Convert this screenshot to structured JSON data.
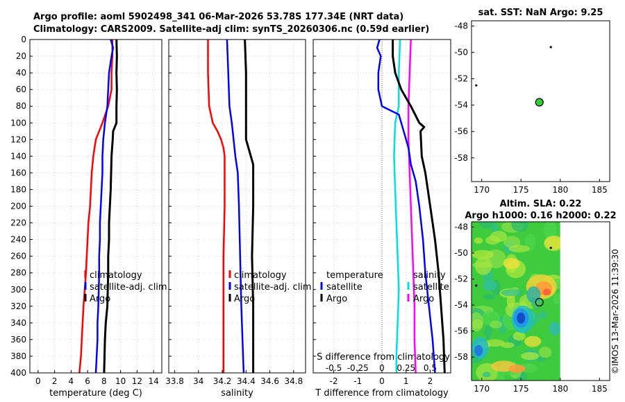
{
  "header": {
    "line1": "Argo profile: aoml 5902498_341 06-Mar-2026 53.78S 177.34E (NRT data)",
    "line2": "Climatology: CARS2009. Satellite-adj clim: synTS_20260306.nc (0.59d earlier)"
  },
  "credit": "©IMOS 13-Mar-2026 11:39:30",
  "chart_data": [
    {
      "id": "temperature",
      "type": "line",
      "xlabel": "temperature (deg C)",
      "ylabel": "",
      "xlim": [
        -1,
        15
      ],
      "ylim": [
        400,
        0
      ],
      "xticks": [
        0,
        2,
        4,
        6,
        8,
        10,
        12,
        14
      ],
      "xtick_labels": [
        "0",
        "2",
        "4",
        "6",
        "8",
        "10",
        "12",
        "14"
      ],
      "yticks": [
        0,
        20,
        40,
        60,
        80,
        100,
        120,
        140,
        160,
        180,
        200,
        220,
        240,
        260,
        280,
        300,
        320,
        340,
        360,
        380,
        400
      ],
      "ytick_labels": [
        "0",
        "20",
        "40",
        "60",
        "80",
        "100",
        "120",
        "140",
        "160",
        "180",
        "200",
        "220",
        "240",
        "260",
        "280",
        "300",
        "320",
        "340",
        "360",
        "380",
        "400"
      ],
      "legend": [
        "climatology",
        "satellite-adj. clim",
        "Argo"
      ],
      "series": [
        {
          "name": "climatology",
          "color": "#ff0000",
          "width": 2.5,
          "points": [
            [
              9.0,
              0
            ],
            [
              9.0,
              20
            ],
            [
              8.9,
              40
            ],
            [
              8.9,
              60
            ],
            [
              8.5,
              80
            ],
            [
              7.8,
              100
            ],
            [
              7.0,
              120
            ],
            [
              6.7,
              140
            ],
            [
              6.5,
              160
            ],
            [
              6.4,
              180
            ],
            [
              6.3,
              200
            ],
            [
              6.1,
              220
            ],
            [
              6.0,
              240
            ],
            [
              5.9,
              260
            ],
            [
              5.8,
              280
            ],
            [
              5.65,
              300
            ],
            [
              5.5,
              320
            ],
            [
              5.4,
              340
            ],
            [
              5.3,
              360
            ],
            [
              5.2,
              380
            ],
            [
              5.0,
              400
            ]
          ]
        },
        {
          "name": "satellite-adj. clim",
          "color": "#0000ff",
          "width": 2.5,
          "points": [
            [
              8.8,
              0
            ],
            [
              9.1,
              10
            ],
            [
              8.9,
              20
            ],
            [
              8.6,
              40
            ],
            [
              8.5,
              60
            ],
            [
              8.4,
              80
            ],
            [
              8.1,
              100
            ],
            [
              7.9,
              120
            ],
            [
              7.8,
              140
            ],
            [
              7.8,
              160
            ],
            [
              7.7,
              180
            ],
            [
              7.6,
              200
            ],
            [
              7.5,
              220
            ],
            [
              7.5,
              240
            ],
            [
              7.4,
              260
            ],
            [
              7.4,
              280
            ],
            [
              7.35,
              300
            ],
            [
              7.3,
              320
            ],
            [
              7.2,
              340
            ],
            [
              7.2,
              360
            ],
            [
              7.1,
              380
            ],
            [
              7.0,
              400
            ]
          ]
        },
        {
          "name": "Argo",
          "color": "#000000",
          "width": 3,
          "points": [
            [
              9.5,
              0
            ],
            [
              9.55,
              20
            ],
            [
              9.5,
              40
            ],
            [
              9.55,
              60
            ],
            [
              9.5,
              80
            ],
            [
              9.5,
              100
            ],
            [
              9.1,
              110
            ],
            [
              9.05,
              120
            ],
            [
              8.9,
              140
            ],
            [
              8.85,
              160
            ],
            [
              8.8,
              180
            ],
            [
              8.7,
              200
            ],
            [
              8.6,
              220
            ],
            [
              8.6,
              240
            ],
            [
              8.5,
              260
            ],
            [
              8.5,
              280
            ],
            [
              8.45,
              300
            ],
            [
              8.4,
              320
            ],
            [
              8.2,
              340
            ],
            [
              8.1,
              360
            ],
            [
              8.05,
              380
            ],
            [
              8.0,
              400
            ]
          ]
        }
      ]
    },
    {
      "id": "salinity",
      "type": "line",
      "xlabel": "salinity",
      "ylabel": "",
      "xlim": [
        33.75,
        34.9
      ],
      "ylim": [
        400,
        0
      ],
      "xticks": [
        33.8,
        34.0,
        34.2,
        34.4,
        34.6,
        34.8
      ],
      "xtick_labels": [
        "33.8",
        "34",
        "34.2",
        "34.4",
        "34.6",
        "34.8"
      ],
      "legend": [
        "climatology",
        "satellite-adj. clim",
        "Argo"
      ],
      "series": [
        {
          "name": "climatology",
          "color": "#ff0000",
          "width": 2.5,
          "points": [
            [
              34.08,
              0
            ],
            [
              34.08,
              40
            ],
            [
              34.09,
              80
            ],
            [
              34.12,
              100
            ],
            [
              34.16,
              110
            ],
            [
              34.19,
              120
            ],
            [
              34.21,
              130
            ],
            [
              34.22,
              140
            ],
            [
              34.22,
              200
            ],
            [
              34.21,
              260
            ],
            [
              34.21,
              320
            ],
            [
              34.21,
              360
            ],
            [
              34.21,
              400
            ]
          ]
        },
        {
          "name": "satellite-adj. clim",
          "color": "#0000ff",
          "width": 2.5,
          "points": [
            [
              34.24,
              0
            ],
            [
              34.25,
              40
            ],
            [
              34.26,
              80
            ],
            [
              34.28,
              100
            ],
            [
              34.31,
              140
            ],
            [
              34.33,
              160
            ],
            [
              34.34,
              200
            ],
            [
              34.35,
              260
            ],
            [
              34.36,
              320
            ],
            [
              34.37,
              360
            ],
            [
              34.38,
              400
            ]
          ]
        },
        {
          "name": "Argo",
          "color": "#000000",
          "width": 3,
          "points": [
            [
              34.39,
              0
            ],
            [
              34.4,
              40
            ],
            [
              34.4,
              80
            ],
            [
              34.4,
              120
            ],
            [
              34.43,
              135
            ],
            [
              34.46,
              150
            ],
            [
              34.46,
              200
            ],
            [
              34.45,
              260
            ],
            [
              34.46,
              320
            ],
            [
              34.46,
              360
            ],
            [
              34.46,
              400
            ]
          ]
        }
      ]
    },
    {
      "id": "difference",
      "type": "line",
      "xlabel": "T difference from climatology",
      "xlabel_top": "S difference from climatology",
      "xlim": [
        -2.85,
        2.85
      ],
      "ylim": [
        400,
        0
      ],
      "xticks": [
        -2,
        -1,
        0,
        1,
        2
      ],
      "xtick_labels": [
        "-2",
        "-1",
        "0",
        "1",
        "2"
      ],
      "xticks_top": [
        -0.5,
        -0.25,
        0,
        0.25,
        0.5
      ],
      "xtick_labels_top": [
        "-0.5",
        "-0.25",
        "0",
        "0.25",
        "0.5"
      ],
      "legend_left": [
        "temperature",
        "satellite",
        "Argo"
      ],
      "legend_right": [
        "salinity",
        "satellite",
        "Argo"
      ],
      "series": [
        {
          "name": "S satellite",
          "color": "#00e0e0",
          "width": 2.5,
          "points": [
            [
              0.75,
              0
            ],
            [
              0.7,
              40
            ],
            [
              0.7,
              80
            ],
            [
              0.55,
              100
            ],
            [
              0.5,
              140
            ],
            [
              0.55,
              180
            ],
            [
              0.6,
              220
            ],
            [
              0.65,
              260
            ],
            [
              0.7,
              300
            ],
            [
              0.65,
              340
            ],
            [
              0.6,
              380
            ],
            [
              0.6,
              400
            ]
          ]
        },
        {
          "name": "S Argo",
          "color": "#ff00ff",
          "width": 2.5,
          "points": [
            [
              1.2,
              0
            ],
            [
              1.15,
              40
            ],
            [
              1.1,
              80
            ],
            [
              1.1,
              120
            ],
            [
              1.15,
              160
            ],
            [
              1.2,
              200
            ],
            [
              1.25,
              240
            ],
            [
              1.3,
              280
            ],
            [
              1.35,
              320
            ],
            [
              1.35,
              360
            ],
            [
              1.4,
              400
            ]
          ]
        },
        {
          "name": "T satellite",
          "color": "#0000ff",
          "width": 2.5,
          "points": [
            [
              -0.1,
              0
            ],
            [
              -0.2,
              10
            ],
            [
              -0.05,
              20
            ],
            [
              -0.15,
              40
            ],
            [
              -0.15,
              60
            ],
            [
              0.0,
              80
            ],
            [
              0.7,
              90
            ],
            [
              0.9,
              110
            ],
            [
              1.1,
              130
            ],
            [
              1.2,
              150
            ],
            [
              1.4,
              170
            ],
            [
              1.55,
              200
            ],
            [
              1.7,
              240
            ],
            [
              1.8,
              280
            ],
            [
              1.95,
              320
            ],
            [
              2.1,
              360
            ],
            [
              2.2,
              400
            ]
          ]
        },
        {
          "name": "T Argo",
          "color": "#000000",
          "width": 3,
          "points": [
            [
              0.45,
              0
            ],
            [
              0.45,
              20
            ],
            [
              0.55,
              40
            ],
            [
              0.8,
              60
            ],
            [
              1.2,
              80
            ],
            [
              1.55,
              100
            ],
            [
              1.75,
              105
            ],
            [
              1.6,
              110
            ],
            [
              1.65,
              140
            ],
            [
              1.8,
              160
            ],
            [
              2.0,
              200
            ],
            [
              2.2,
              240
            ],
            [
              2.35,
              280
            ],
            [
              2.45,
              320
            ],
            [
              2.55,
              360
            ],
            [
              2.6,
              400
            ]
          ]
        }
      ]
    },
    {
      "id": "sst_map",
      "type": "scatter",
      "title": "sat. SST: NaN Argo: 9.25",
      "xlim": [
        168.7,
        186.3
      ],
      "ylim": [
        -59.8,
        -47.6
      ],
      "xticks": [
        170,
        175,
        180,
        185
      ],
      "xtick_labels": [
        "170",
        "175",
        "180",
        "185"
      ],
      "yticks": [
        -48,
        -50,
        -52,
        -54,
        -56,
        -58
      ],
      "ytick_labels": [
        "-48",
        "-50",
        "-52",
        "-54",
        "-56",
        "-58"
      ],
      "points": [
        {
          "lon": 177.34,
          "lat": -53.78,
          "kind": "argo",
          "fill": "#33cc33"
        },
        {
          "lon": 169.3,
          "lat": -52.5,
          "kind": "dot"
        },
        {
          "lon": 178.8,
          "lat": -49.6,
          "kind": "dot"
        }
      ]
    },
    {
      "id": "sla_map",
      "type": "heatmap",
      "title": "Altim. SLA: 0.22",
      "subtitle": "Argo h1000: 0.16 h2000: 0.22",
      "xlim": [
        168.7,
        186.3
      ],
      "ylim": [
        -59.8,
        -47.6
      ],
      "xticks": [
        170,
        175,
        180,
        185
      ],
      "xtick_labels": [
        "170",
        "175",
        "180",
        "185"
      ],
      "yticks": [
        -48,
        -50,
        -52,
        -54,
        -56,
        -58
      ],
      "ytick_labels": [
        "-48",
        "-50",
        "-52",
        "-54",
        "-56",
        "-58"
      ],
      "data_lon_max": 180.0,
      "points": [
        {
          "lon": 177.34,
          "lat": -53.78,
          "kind": "argo"
        },
        {
          "lon": 169.3,
          "lat": -52.5,
          "kind": "dot"
        },
        {
          "lon": 178.8,
          "lat": -49.6,
          "kind": "dot"
        }
      ]
    }
  ]
}
